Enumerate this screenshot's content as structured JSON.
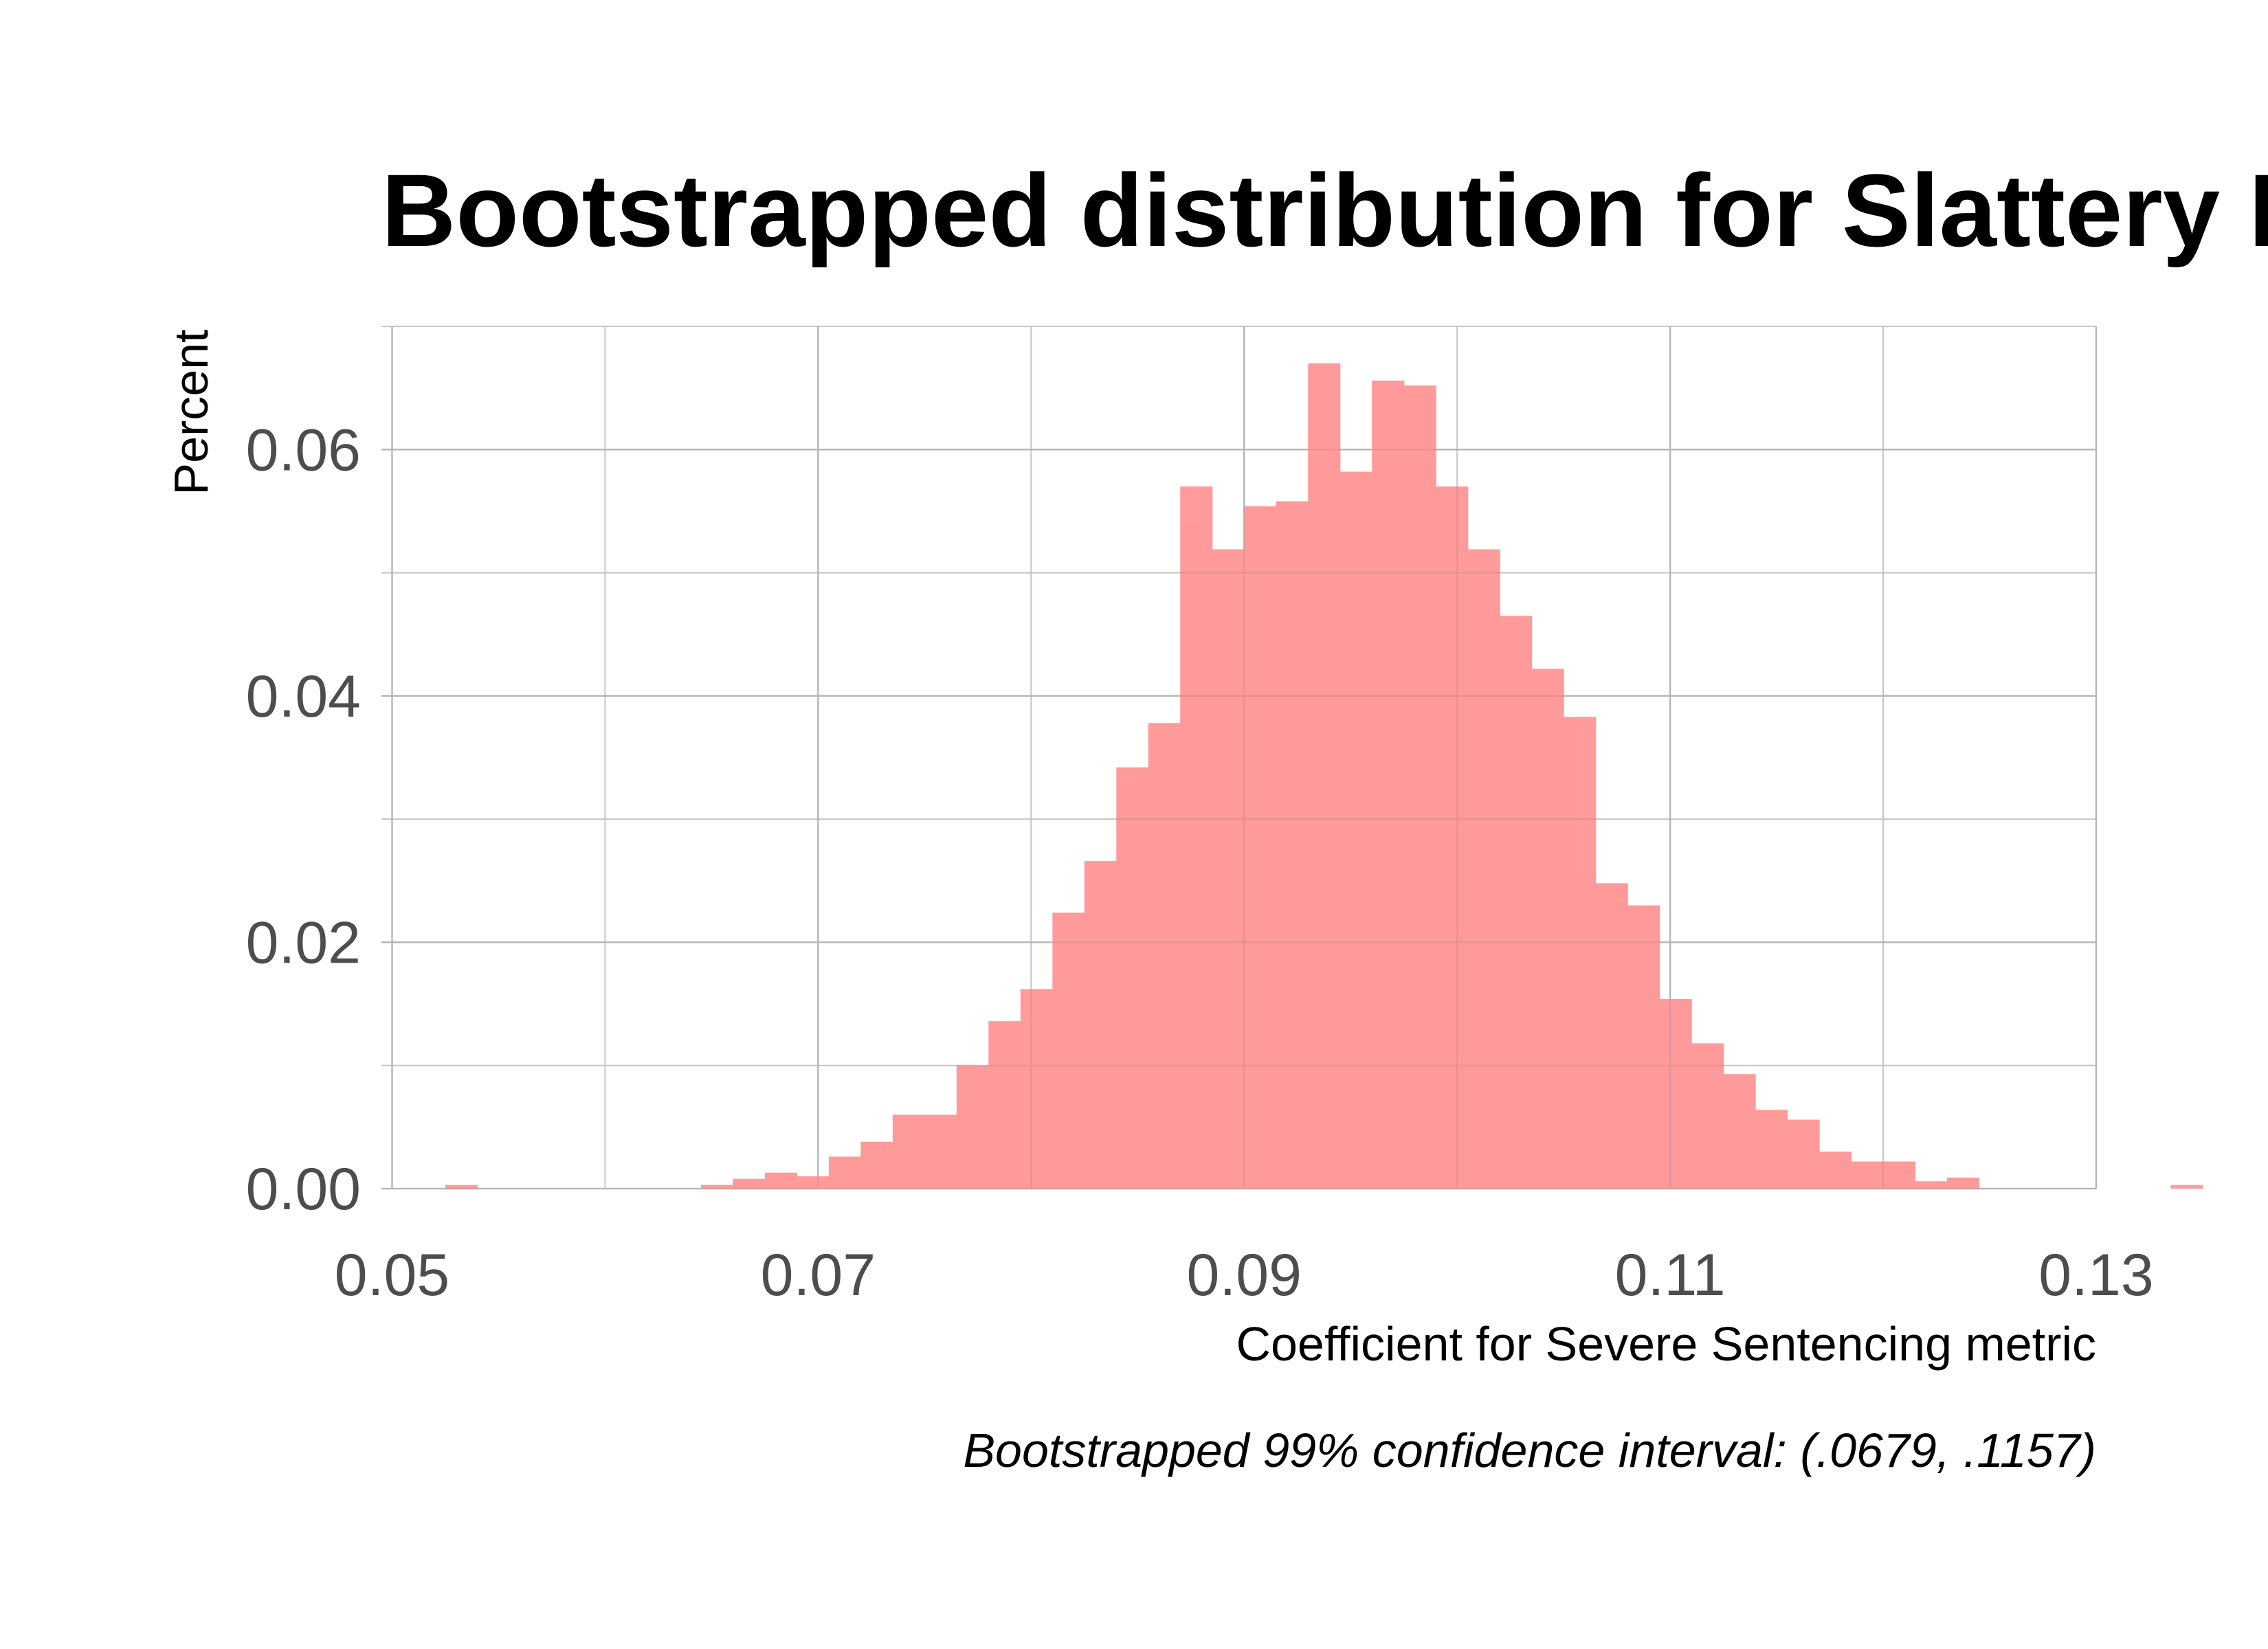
{
  "chart_data": {
    "type": "bar",
    "title": "Bootstrapped distribution for Slattery I",
    "xlabel": "Coefficient for Severe Sentencing metric",
    "ylabel": "Percent",
    "caption": "Bootstrapped 99% confidence interval: (.0679, .1157)",
    "xlim": [
      0.0495,
      0.13
    ],
    "ylim": [
      0,
      0.07
    ],
    "x_ticks": [
      "0.05",
      "0.07",
      "0.09",
      "0.11",
      "0.13"
    ],
    "x_tick_values": [
      0.05,
      0.07,
      0.09,
      0.11,
      0.13
    ],
    "y_ticks": [
      "0.00",
      "0.02",
      "0.04",
      "0.06"
    ],
    "y_tick_values": [
      0,
      0.02,
      0.04,
      0.06
    ],
    "x_minor_values": [
      0.06,
      0.08,
      0.1,
      0.12
    ],
    "y_minor_values": [
      0.01,
      0.03,
      0.05,
      0.07
    ],
    "grid": true,
    "bar_color": "#ff9999",
    "bins": {
      "start": 0.0525,
      "width": 0.0015,
      "values": [
        0.0003,
        0.0,
        0.0,
        0.0,
        0.0,
        0.0,
        0.0,
        0.0,
        0.0003,
        0.0008,
        0.0013,
        0.001,
        0.0026,
        0.0038,
        0.006,
        0.006,
        0.01,
        0.0136,
        0.0162,
        0.0224,
        0.0266,
        0.0342,
        0.0378,
        0.057,
        0.0519,
        0.0554,
        0.0558,
        0.067,
        0.0582,
        0.0656,
        0.0652,
        0.057,
        0.0519,
        0.0465,
        0.0422,
        0.0383,
        0.0248,
        0.023,
        0.0154,
        0.0118,
        0.0093,
        0.0064,
        0.0056,
        0.003,
        0.0022,
        0.0022,
        0.0006,
        0.0009,
        0.0,
        0.0,
        0.0,
        0.0,
        0.0,
        0.0,
        0.0003
      ]
    }
  }
}
